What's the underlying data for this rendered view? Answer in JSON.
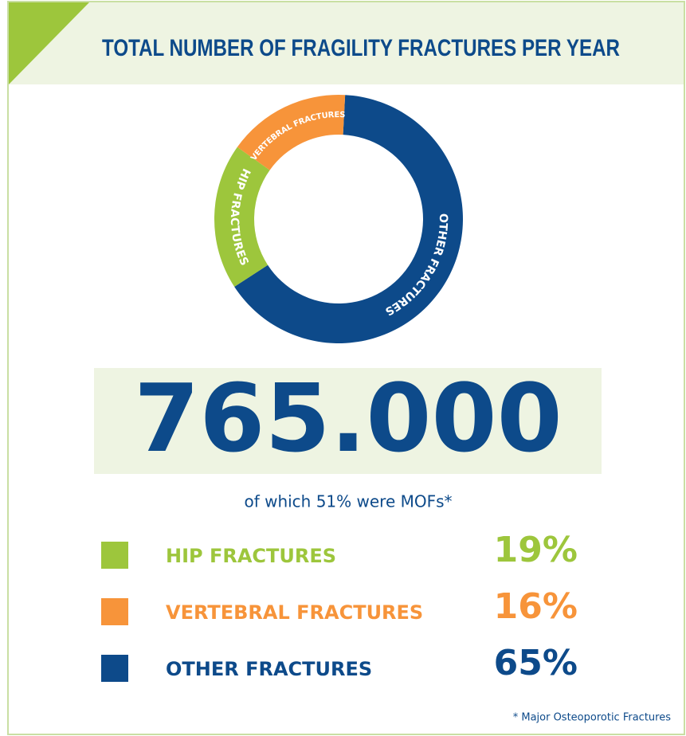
{
  "chart_data": {
    "type": "donut",
    "title": "TOTAL NUMBER OF FRAGILITY FRACTURES PER YEAR",
    "categories": [
      "HIP FRACTURES",
      "VERTEBRAL FRACTURES",
      "OTHER FRACTURES"
    ],
    "values": [
      19,
      16,
      65
    ],
    "value_labels": [
      "19%",
      "16%",
      "65%"
    ],
    "colors": [
      "#9dc63c",
      "#f7943a",
      "#0d4a8a"
    ],
    "total": "765.000",
    "subtitle": "of which 51% were MOFs*",
    "footnote": "* Major Osteoporotic Fractures"
  }
}
